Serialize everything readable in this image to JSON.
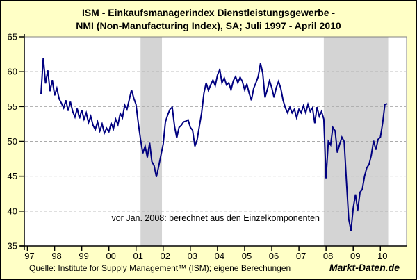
{
  "title": {
    "line1": "ISM - Einkaufsmanagerindex Dienstleistungsgewerbe -",
    "line2": "NMI (Non-Manufacturing Index), SA;  Juli 1997 - April 2010"
  },
  "annotation": "vor Jan. 2008: berechnet aus den Einzelkomponenten",
  "source": "Quelle: Institute for Supply Management™ (ISM); eigene Berechungen",
  "watermark": "Markt-Daten.de",
  "colors": {
    "background": "#FFFFC6",
    "plot_background": "#FFFFFF",
    "recession_band": "#D4D4D4",
    "gridline": "#AAAAAA",
    "plot_border": "#808080",
    "axis": "#000000",
    "line": "#000080"
  },
  "chart_data": {
    "type": "line",
    "title": "ISM - Einkaufsmanagerindex Dienstleistungsgewerbe - NMI (Non-Manufacturing Index), SA; Juli 1997 - April 2010",
    "xlabel": "",
    "ylabel": "",
    "ylim": [
      35,
      65
    ],
    "y_ticks": [
      35,
      40,
      45,
      50,
      55,
      60,
      65
    ],
    "x_tick_years": [
      "97",
      "98",
      "99",
      "00",
      "01",
      "02",
      "03",
      "04",
      "05",
      "06",
      "07",
      "08",
      "09",
      "10"
    ],
    "grid": "horizontal dashed at 40,45,50,55,60",
    "legend_position": "none",
    "recession_bands": [
      {
        "from": "2001-03",
        "to": "2001-12"
      },
      {
        "from": "2007-12",
        "to": "2010-04"
      }
    ],
    "x_start": "1997-07",
    "x_end": "2010-04",
    "series": [
      {
        "name": "NMI (Non-Manufacturing Index), SA",
        "color": "#000080",
        "monthly_values": [
          56.8,
          62.0,
          58.3,
          60.2,
          57.2,
          58.8,
          56.6,
          57.6,
          56.1,
          55.5,
          54.8,
          55.9,
          54.4,
          55.7,
          54.3,
          53.5,
          54.7,
          53.3,
          54.5,
          53.2,
          54.1,
          52.7,
          53.6,
          52.3,
          51.7,
          52.8,
          51.5,
          52.5,
          51.2,
          51.9,
          51.4,
          52.6,
          51.8,
          53.2,
          52.4,
          54.0,
          53.4,
          55.2,
          54.6,
          56.0,
          57.4,
          56.2,
          55.3,
          52.6,
          50.3,
          48.3,
          49.3,
          47.7,
          49.8,
          47.1,
          46.5,
          44.9,
          46.4,
          48.0,
          49.6,
          52.8,
          53.8,
          54.6,
          54.9,
          52.2,
          50.5,
          52.0,
          52.3,
          52.8,
          52.9,
          53.1,
          52.0,
          51.6,
          49.3,
          50.2,
          52.2,
          54.1,
          56.9,
          58.4,
          57.3,
          58.1,
          58.8,
          58.0,
          59.5,
          60.3,
          58.4,
          59.1,
          58.1,
          58.4,
          57.4,
          58.7,
          59.3,
          58.4,
          59.2,
          58.6,
          57.4,
          58.2,
          56.9,
          55.9,
          57.6,
          58.4,
          59.3,
          61.2,
          59.8,
          56.3,
          57.4,
          58.7,
          57.7,
          56.3,
          57.7,
          58.6,
          57.6,
          55.9,
          54.8,
          54.1,
          54.9,
          54.1,
          54.6,
          53.4,
          54.6,
          54.1,
          55.1,
          54.1,
          55.3,
          54.3,
          54.8,
          52.6,
          54.9,
          53.6,
          54.3,
          53.2,
          44.7,
          50.0,
          49.5,
          52.0,
          51.5,
          48.4,
          49.6,
          50.6,
          50.0,
          44.4,
          38.9,
          37.2,
          40.4,
          42.4,
          40.1,
          42.7,
          43.1,
          45.0,
          46.2,
          46.7,
          48.0,
          50.1,
          48.8,
          50.3,
          50.6,
          52.6,
          55.3,
          55.4
        ]
      }
    ]
  }
}
